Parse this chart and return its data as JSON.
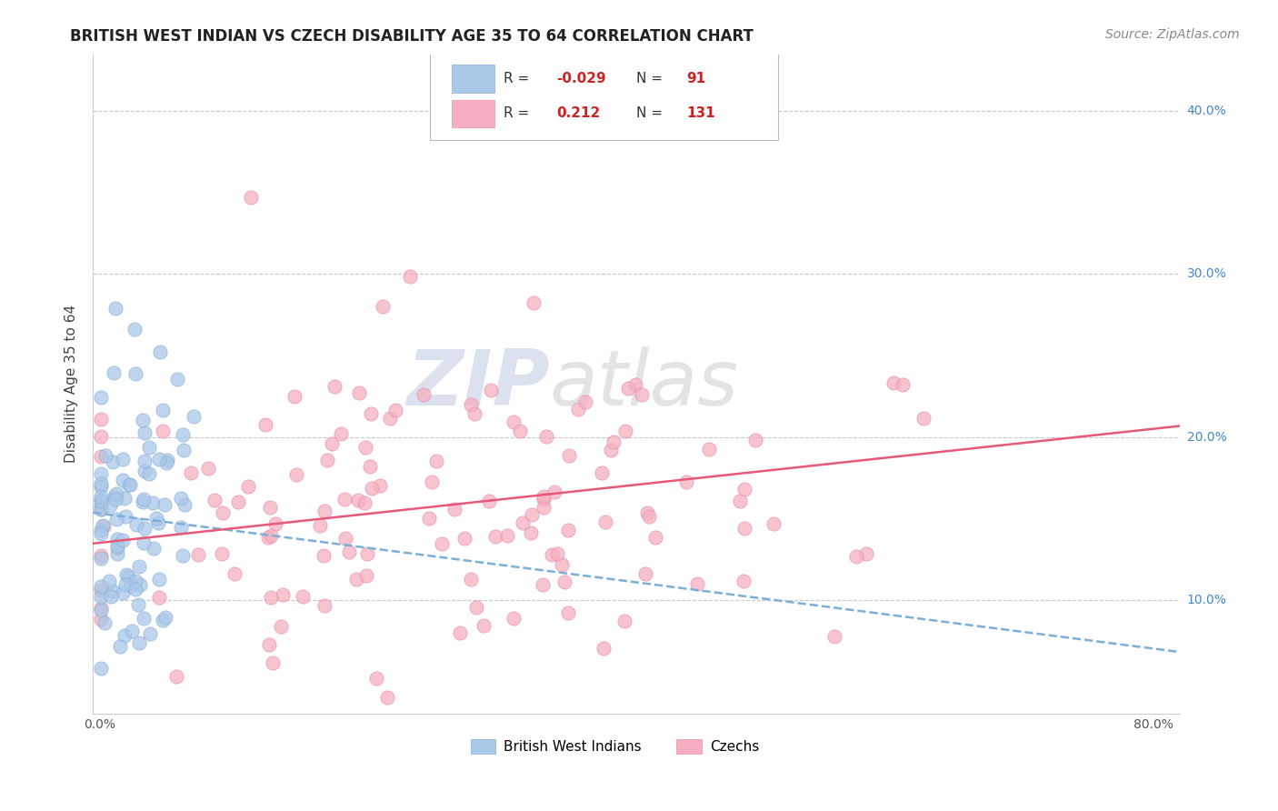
{
  "title": "BRITISH WEST INDIAN VS CZECH DISABILITY AGE 35 TO 64 CORRELATION CHART",
  "source_text": "Source: ZipAtlas.com",
  "ylabel": "Disability Age 35 to 64",
  "xlabel": "",
  "xlim": [
    -0.005,
    0.82
  ],
  "ylim": [
    0.03,
    0.435
  ],
  "xticks": [
    0.0,
    0.1,
    0.2,
    0.3,
    0.4,
    0.5,
    0.6,
    0.7,
    0.8
  ],
  "yticks": [
    0.1,
    0.2,
    0.3,
    0.4
  ],
  "ytick_labels": [
    "10.0%",
    "20.0%",
    "30.0%",
    "40.0%"
  ],
  "xtick_labels": [
    "0.0%",
    "",
    "",
    "",
    "",
    "",
    "",
    "",
    "80.0%"
  ],
  "blue_R": -0.029,
  "blue_N": 91,
  "pink_R": 0.212,
  "pink_N": 131,
  "blue_color": "#aac8e8",
  "pink_color": "#f5afc0",
  "blue_edge": "#88b0d8",
  "pink_edge": "#e890a8",
  "blue_line_color": "#7ab0d8",
  "pink_line_color": "#e85878",
  "grid_color": "#c8c8cc",
  "background_color": "#ffffff",
  "watermark_color": "#ccd5e8",
  "legend_label_blue": "British West Indians",
  "legend_label_pink": "Czechs",
  "title_fontsize": 12,
  "axis_label_fontsize": 11,
  "tick_fontsize": 10,
  "legend_fontsize": 11,
  "source_fontsize": 10
}
